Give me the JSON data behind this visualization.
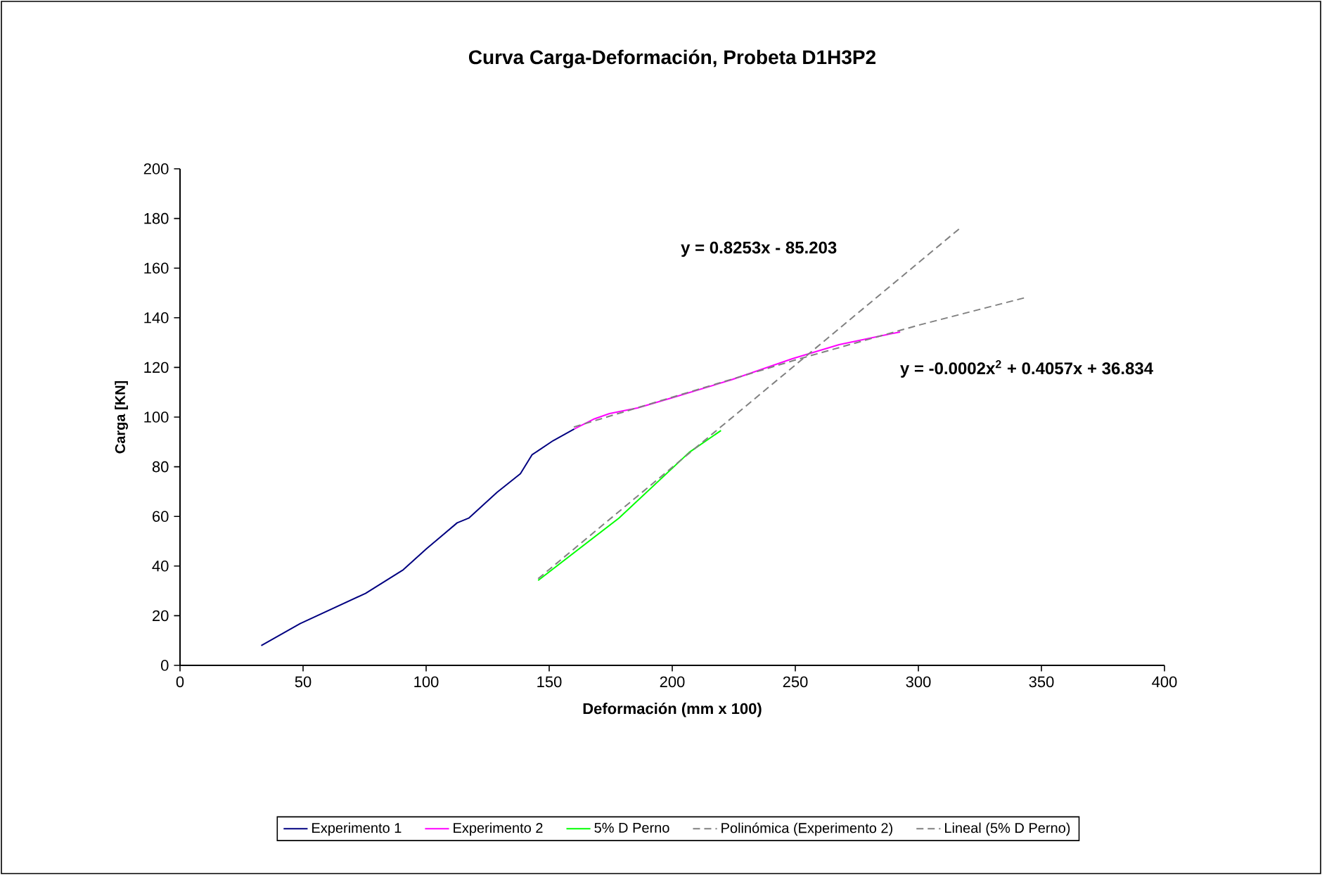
{
  "chart_data": {
    "type": "line",
    "title": "Curva Carga-Deformación, Probeta D1H3P2",
    "xlabel": "Deformación (mm x 100)",
    "ylabel": "Carga [KN]",
    "xlim": [
      0,
      400
    ],
    "xticks": [
      0,
      50,
      100,
      150,
      200,
      250,
      300,
      350,
      400
    ],
    "ylim": [
      0,
      200
    ],
    "yticks": [
      0,
      20,
      40,
      60,
      80,
      100,
      120,
      140,
      160,
      180,
      200
    ],
    "legend": "bottom",
    "grid": false,
    "marker": "none",
    "series": [
      {
        "name": "Experimento 1",
        "color": "#000080",
        "line_style": "solid",
        "x": [
          33,
          48.8,
          75.4,
          90.7,
          100.2,
          112.6,
          117.3,
          128.8,
          138.3,
          143,
          151.6,
          160.2
        ],
        "values": [
          8,
          16.8,
          29,
          38.5,
          47,
          57.4,
          59.3,
          69.7,
          77.2,
          84.8,
          90.5,
          95.2
        ]
      },
      {
        "name": "Experimento 2",
        "color": "#ff00ff",
        "line_style": "solid",
        "x": [
          160.2,
          168.4,
          174.5,
          185.9,
          200,
          224,
          248.8,
          267.8,
          292.6
        ],
        "values": [
          95.2,
          99.3,
          101.4,
          103.7,
          107.8,
          115,
          123.5,
          129.2,
          134.3
        ]
      },
      {
        "name": "5% D Perno",
        "color": "#00ff00",
        "line_style": "solid",
        "x": [
          145.5,
          178.3,
          206.9,
          219.8
        ],
        "values": [
          34.2,
          59.3,
          85.8,
          94.6
        ]
      },
      {
        "name": "Polinómica (Experimento 2)",
        "color": "#808080",
        "line_style": "dashed",
        "x": [
          160,
          200,
          250,
          300,
          343
        ],
        "values": [
          96,
          108,
          123,
          137,
          148
        ]
      },
      {
        "name": "Lineal (5% D Perno)",
        "color": "#808080",
        "line_style": "dashed",
        "x": [
          145.5,
          317.3
        ],
        "values": [
          34.9,
          176.4
        ]
      }
    ],
    "annotations": [
      "y = 0.8253x - 85.203",
      "y = -0.0002x$^{2}$ + 0.4057x + 36.834"
    ]
  }
}
